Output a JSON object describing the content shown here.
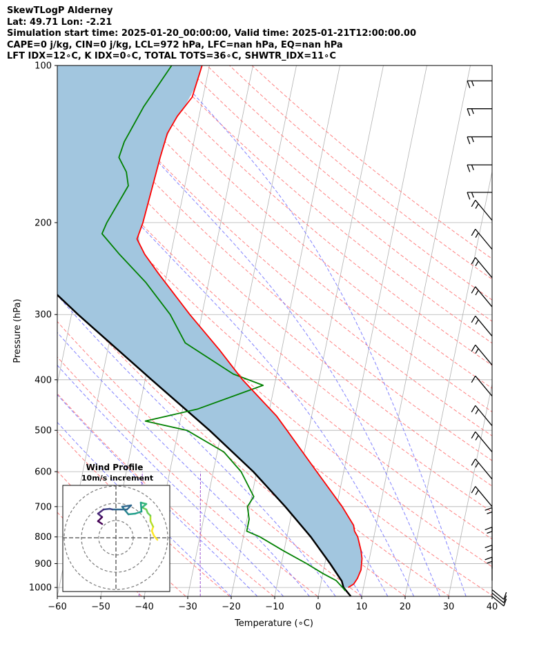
{
  "header": {
    "title": "SkewTLogP Alderney",
    "location": "Lat: 49.71   Lon: -2.21",
    "times": "Simulation start time: 2025-01-20_00:00:00, Valid time: 2025-01-21T12:00:00.00",
    "indices": "CAPE=0 j/kg, CIN=0 j/kg, LCL=972 hPa, LFC=nan hPa, EQ=nan hPa",
    "indices2": "LFT IDX=12∘C, K IDX=0∘C, TOTAL TOTS=36∘C, SHWTR_IDX=11∘C"
  },
  "chart_data": {
    "type": "skewt",
    "xlabel": "Temperature (∘C)",
    "ylabel": "Pressure (hPa)",
    "xlim": [
      -60,
      40
    ],
    "ylim": [
      1040,
      100
    ],
    "x_ticks": [
      -60,
      -50,
      -40,
      -30,
      -20,
      -10,
      0,
      10,
      20,
      30,
      40
    ],
    "y_ticks": [
      100,
      200,
      300,
      400,
      500,
      600,
      700,
      800,
      900,
      1000
    ],
    "grid": true,
    "colors": {
      "temperature": "#ff0000",
      "dewpoint": "#008000",
      "parcel": "#000000",
      "shading": "#a2c6df",
      "dry_adiabats": "#ff6a6a",
      "moist_adiabats": "#6b6bff",
      "mixing_ratio": "#9a4fcf",
      "isotherms": "#b0b0b0"
    },
    "temperature_profile": [
      {
        "p": 1000,
        "t": 6.5
      },
      {
        "p": 985,
        "t": 7.6
      },
      {
        "p": 960,
        "t": 8.2
      },
      {
        "p": 925,
        "t": 8.6
      },
      {
        "p": 880,
        "t": 8.3
      },
      {
        "p": 850,
        "t": 7.7
      },
      {
        "p": 800,
        "t": 6.3
      },
      {
        "p": 780,
        "t": 5.3
      },
      {
        "p": 760,
        "t": 4.8
      },
      {
        "p": 700,
        "t": 1.3
      },
      {
        "p": 600,
        "t": -6.2
      },
      {
        "p": 500,
        "t": -15.0
      },
      {
        "p": 470,
        "t": -18.0
      },
      {
        "p": 400,
        "t": -27.6
      },
      {
        "p": 350,
        "t": -34.4
      },
      {
        "p": 300,
        "t": -42.8
      },
      {
        "p": 250,
        "t": -52.0
      },
      {
        "p": 230,
        "t": -56.0
      },
      {
        "p": 215,
        "t": -58.5
      },
      {
        "p": 200,
        "t": -57.9
      },
      {
        "p": 150,
        "t": -57.0
      },
      {
        "p": 135,
        "t": -56.5
      },
      {
        "p": 125,
        "t": -55.0
      },
      {
        "p": 115,
        "t": -52.5
      },
      {
        "p": 100,
        "t": -51.7
      }
    ],
    "dewpoint_profile": [
      {
        "p": 1015,
        "t": 6.0
      },
      {
        "p": 1000,
        "t": 5.2
      },
      {
        "p": 970,
        "t": 3.4
      },
      {
        "p": 940,
        "t": 0.0
      },
      {
        "p": 900,
        "t": -4.2
      },
      {
        "p": 850,
        "t": -10.2
      },
      {
        "p": 800,
        "t": -16.2
      },
      {
        "p": 780,
        "t": -19.5
      },
      {
        "p": 740,
        "t": -19.5
      },
      {
        "p": 700,
        "t": -20.5
      },
      {
        "p": 670,
        "t": -19.5
      },
      {
        "p": 600,
        "t": -23.6
      },
      {
        "p": 550,
        "t": -28.5
      },
      {
        "p": 500,
        "t": -38.0
      },
      {
        "p": 480,
        "t": -48.0
      },
      {
        "p": 455,
        "t": -36.5
      },
      {
        "p": 410,
        "t": -22.6
      },
      {
        "p": 390,
        "t": -30.0
      },
      {
        "p": 340,
        "t": -42.5
      },
      {
        "p": 300,
        "t": -47.3
      },
      {
        "p": 260,
        "t": -54.5
      },
      {
        "p": 230,
        "t": -61.8
      },
      {
        "p": 210,
        "t": -66.8
      },
      {
        "p": 200,
        "t": -66.2
      },
      {
        "p": 170,
        "t": -63.0
      },
      {
        "p": 160,
        "t": -64.1
      },
      {
        "p": 150,
        "t": -66.5
      },
      {
        "p": 140,
        "t": -66.0
      },
      {
        "p": 120,
        "t": -63.2
      },
      {
        "p": 100,
        "t": -58.7
      }
    ],
    "parcel_profile": [
      {
        "p": 1040,
        "t": 7.5
      },
      {
        "p": 1000,
        "t": 5.4
      },
      {
        "p": 972,
        "t": 4.7
      },
      {
        "p": 900,
        "t": 1.2
      },
      {
        "p": 800,
        "t": -4.5
      },
      {
        "p": 700,
        "t": -11.8
      },
      {
        "p": 600,
        "t": -20.8
      },
      {
        "p": 500,
        "t": -32.8
      },
      {
        "p": 400,
        "t": -48.5
      },
      {
        "p": 300,
        "t": -68.5
      },
      {
        "p": 250,
        "t": -80.5
      },
      {
        "p": 200,
        "t": -93.5
      },
      {
        "p": 150,
        "t": -109.5
      },
      {
        "p": 120,
        "t": -120.5
      },
      {
        "p": 100,
        "t": -129.5
      }
    ],
    "wind_barbs": [
      {
        "p": 1040,
        "shaft": "bottom-right",
        "tail": 1
      },
      {
        "p": 1025,
        "shaft": "bottom-right",
        "tail": 1
      },
      {
        "p": 1010,
        "shaft": "bottom-right",
        "tail": 1
      },
      {
        "p": 970,
        "shaft": "up",
        "tail": 2
      },
      {
        "p": 920,
        "shaft": "up",
        "tail": 2
      },
      {
        "p": 850,
        "shaft": "up",
        "tail": 2
      },
      {
        "p": 780,
        "shaft": "up",
        "tail": 2
      },
      {
        "p": 700,
        "shaft": "up-left",
        "tail": 2
      },
      {
        "p": 620,
        "shaft": "up-left",
        "tail": 2
      },
      {
        "p": 550,
        "shaft": "up-left",
        "tail": 2
      },
      {
        "p": 490,
        "shaft": "up-left",
        "tail": 2
      },
      {
        "p": 430,
        "shaft": "up-left",
        "tail": 1
      },
      {
        "p": 375,
        "shaft": "up-left",
        "tail": 2
      },
      {
        "p": 330,
        "shaft": "up-left",
        "tail": 2
      },
      {
        "p": 290,
        "shaft": "up-left",
        "tail": 2
      },
      {
        "p": 255,
        "shaft": "up-left",
        "tail": 2
      },
      {
        "p": 225,
        "shaft": "up-left",
        "tail": 2
      },
      {
        "p": 198,
        "shaft": "up-left",
        "tail": 2
      },
      {
        "p": 175,
        "shaft": "left",
        "tail": 2
      },
      {
        "p": 155,
        "shaft": "left",
        "tail": 2
      },
      {
        "p": 137,
        "shaft": "left",
        "tail": 2
      },
      {
        "p": 121,
        "shaft": "left",
        "tail": 2
      },
      {
        "p": 107,
        "shaft": "left",
        "tail": 2
      }
    ],
    "hodograph": {
      "title": "Wind Profile",
      "subtitle": "10m/s increment",
      "rings": 3,
      "trace": [
        {
          "u": 6.0,
          "v": -0.3
        },
        {
          "u": 5.5,
          "v": 0.3
        },
        {
          "u": 5.2,
          "v": 1.0
        },
        {
          "u": 5.4,
          "v": 1.6
        },
        {
          "u": 5.0,
          "v": 2.4
        },
        {
          "u": 5.0,
          "v": 3.2
        },
        {
          "u": 4.6,
          "v": 3.6
        },
        {
          "u": 4.4,
          "v": 4.1
        },
        {
          "u": 3.8,
          "v": 4.4
        },
        {
          "u": 4.4,
          "v": 4.9
        },
        {
          "u": 3.6,
          "v": 5.1
        },
        {
          "u": 3.7,
          "v": 3.8
        },
        {
          "u": 2.8,
          "v": 3.5
        },
        {
          "u": 1.8,
          "v": 3.4
        },
        {
          "u": 1.3,
          "v": 4.0
        },
        {
          "u": 0.9,
          "v": 4.5
        },
        {
          "u": 2.2,
          "v": 4.7
        },
        {
          "u": 1.6,
          "v": 4.1
        },
        {
          "u": -0.5,
          "v": 4.1
        },
        {
          "u": -0.9,
          "v": 4.2
        },
        {
          "u": -1.8,
          "v": 4.1
        },
        {
          "u": -2.2,
          "v": 3.8
        },
        {
          "u": -2.6,
          "v": 3.5
        },
        {
          "u": -2.0,
          "v": 3.0
        },
        {
          "u": -2.6,
          "v": 2.4
        },
        {
          "u": -2.0,
          "v": 2.0
        }
      ]
    }
  }
}
